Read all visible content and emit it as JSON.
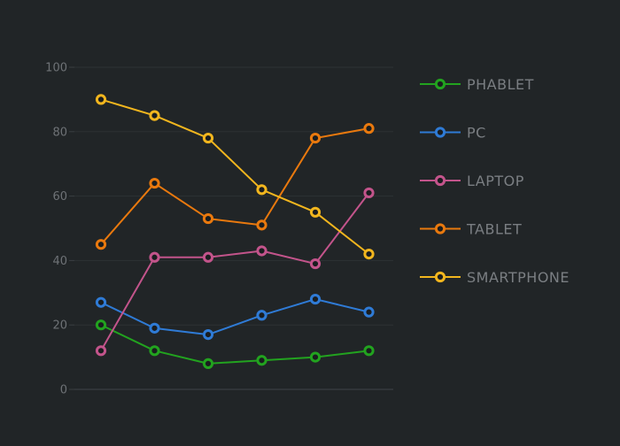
{
  "chart_data": {
    "type": "line",
    "title": "",
    "xlabel": "",
    "ylabel": "",
    "ylim": [
      0,
      100
    ],
    "yticks": [
      0,
      20,
      40,
      60,
      80,
      100
    ],
    "x": [
      1,
      2,
      3,
      4,
      5,
      6
    ],
    "grid": true,
    "legend_position": "right",
    "colors": {
      "background": "#212527",
      "grid": "#2d3234",
      "axis": "#3a3f42",
      "tick_text": "#6e7276",
      "legend_text": "#7a7e82",
      "marker_center": "#1a1d1f"
    },
    "series": [
      {
        "name": "PHABLET",
        "color": "#22a31f",
        "values": [
          20,
          12,
          8,
          9,
          10,
          12
        ]
      },
      {
        "name": "PC",
        "color": "#2f7bd6",
        "values": [
          27,
          19,
          17,
          23,
          28,
          24
        ]
      },
      {
        "name": "LAPTOP",
        "color": "#c3548b",
        "values": [
          12,
          41,
          41,
          43,
          39,
          61
        ]
      },
      {
        "name": "TABLET",
        "color": "#e9790e",
        "values": [
          45,
          64,
          53,
          51,
          78,
          81
        ]
      },
      {
        "name": "SMARTPHONE",
        "color": "#f2b61e",
        "values": [
          90,
          85,
          78,
          62,
          55,
          42
        ]
      }
    ]
  }
}
